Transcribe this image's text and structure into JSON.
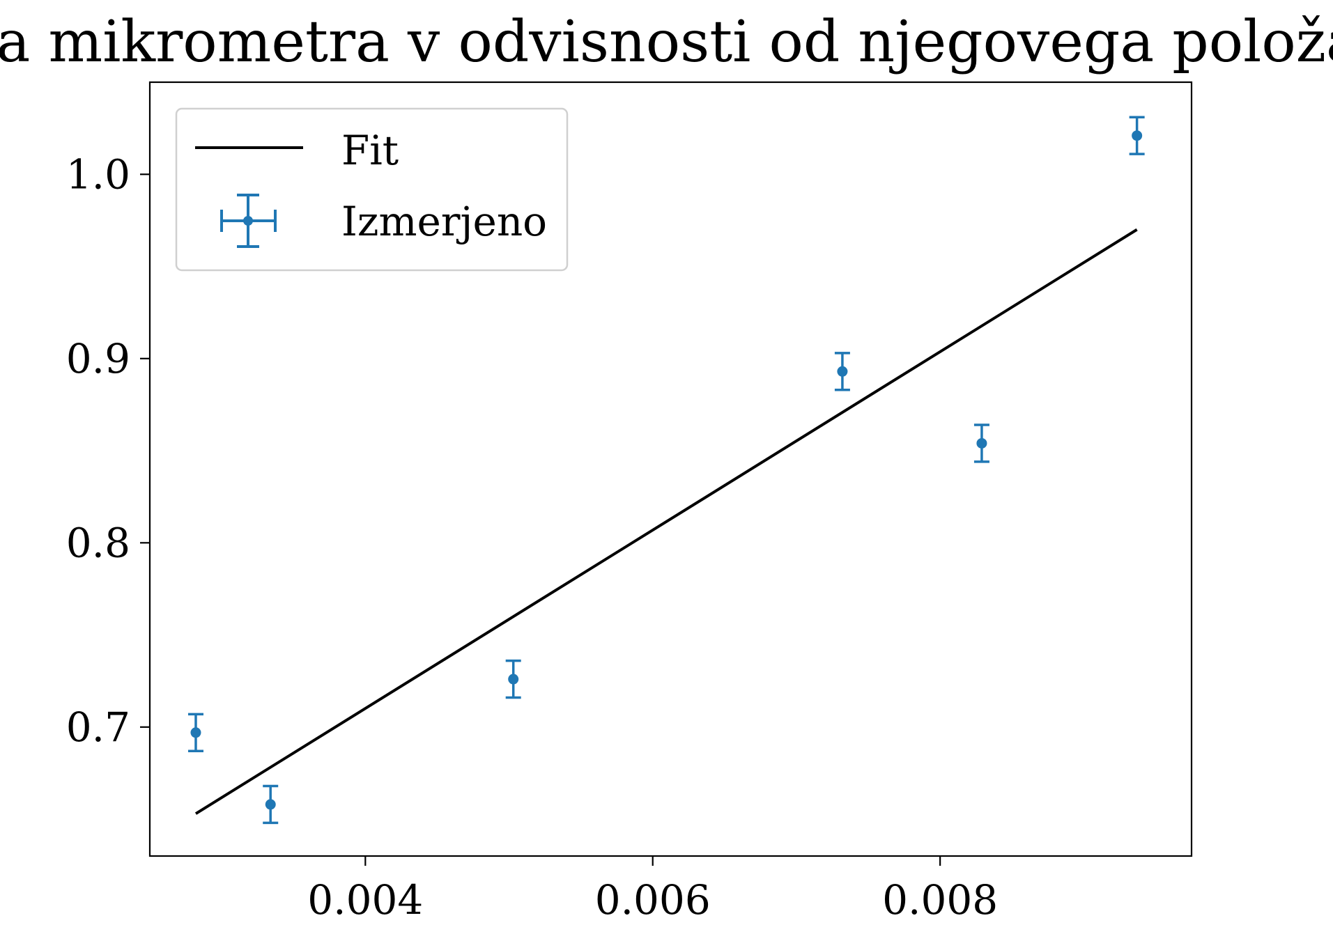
{
  "chart_data": {
    "type": "scatter",
    "title": "Sila mikrometra v odvisnosti od njegovega položaja",
    "xlabel": "",
    "ylabel": "",
    "xlim": [
      0.0025,
      0.00975
    ],
    "ylim": [
      0.63,
      1.05
    ],
    "xticks": [
      0.004,
      0.006,
      0.008
    ],
    "xtick_labels": [
      "0.004",
      "0.006",
      "0.008"
    ],
    "yticks": [
      0.7,
      0.8,
      0.9,
      1.0
    ],
    "ytick_labels": [
      "0.7",
      "0.8",
      "0.9",
      "1.0"
    ],
    "grid": false,
    "legend_position": "upper-left",
    "series": [
      {
        "name": "Izmerjeno",
        "kind": "errorbar",
        "color": "#1f77b4",
        "x": [
          0.00282,
          0.00334,
          0.00503,
          0.00732,
          0.00829,
          0.00937
        ],
        "y": [
          0.697,
          0.658,
          0.726,
          0.893,
          0.854,
          1.021
        ],
        "yerr": [
          0.01,
          0.01,
          0.01,
          0.01,
          0.01,
          0.01
        ]
      },
      {
        "name": "Fit",
        "kind": "line",
        "color": "#000000",
        "x": [
          0.00282,
          0.00937
        ],
        "y": [
          0.653,
          0.97
        ]
      }
    ]
  }
}
